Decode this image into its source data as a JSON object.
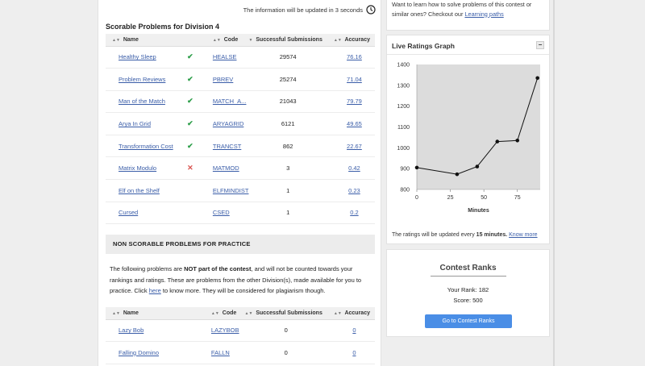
{
  "update_note": "The information will be updated in 3 seconds",
  "scorable": {
    "title": "Scorable Problems for Division 4",
    "headers": {
      "name": "Name",
      "code": "Code",
      "successful": "Successful Submissions",
      "accuracy": "Accuracy"
    },
    "rows": [
      {
        "name": "Healthy Sleep",
        "status": "solved",
        "code": "HEALSE",
        "successful": "29574",
        "accuracy": "76.16"
      },
      {
        "name": "Problem Reviews",
        "status": "solved",
        "code": "PBREV",
        "successful": "25274",
        "accuracy": "71.04"
      },
      {
        "name": "Man of the Match",
        "status": "solved",
        "code": "MATCH_A...",
        "successful": "21043",
        "accuracy": "79.79"
      },
      {
        "name": "Arya In Grid",
        "status": "solved",
        "code": "ARYAGRID",
        "successful": "6121",
        "accuracy": "49.65"
      },
      {
        "name": "Transformation Cost",
        "status": "solved",
        "code": "TRANCST",
        "successful": "862",
        "accuracy": "22.67"
      },
      {
        "name": "Matrix Modulo",
        "status": "failed",
        "code": "MATMOD",
        "successful": "3",
        "accuracy": "0.42"
      },
      {
        "name": "Elf on the Shelf",
        "status": "none",
        "code": "ELFMINDIST",
        "successful": "1",
        "accuracy": "0.23"
      },
      {
        "name": "Cursed",
        "status": "none",
        "code": "CSED",
        "successful": "1",
        "accuracy": "0.2"
      }
    ]
  },
  "nonscorable": {
    "title": "NON SCORABLE PROBLEMS FOR PRACTICE",
    "note_pre": "The following problems are ",
    "note_bold": "NOT part of the contest",
    "note_mid": ", and will not be counted towards your rankings and ratings. These are problems from the other Division(s), made available for you to practice. Click ",
    "note_link": "here",
    "note_post": " to know more. They will be considered for plagiarism though.",
    "headers": {
      "name": "Name",
      "code": "Code",
      "successful": "Successful Submissions",
      "accuracy": "Accuracy"
    },
    "rows": [
      {
        "name": "Lazy Bob",
        "code": "LAZYBOB",
        "successful": "0",
        "accuracy": "0"
      },
      {
        "name": "Falling Domino",
        "code": "FALLN",
        "successful": "0",
        "accuracy": "0"
      }
    ]
  },
  "learn_note": {
    "text": "Want to learn how to solve problems of this contest or similar ones? Checkout our ",
    "link": "Learning paths"
  },
  "graph": {
    "title": "Live Ratings Graph",
    "collapse_label": "−",
    "footer_pre": "The ratings will be updated every ",
    "footer_bold": "15 minutes.",
    "footer_link": "Know more"
  },
  "chart_data": {
    "type": "line",
    "title": "",
    "xlabel": "Minutes",
    "ylabel": "",
    "x": [
      0,
      30,
      45,
      60,
      75,
      90
    ],
    "values": [
      905,
      873,
      910,
      1030,
      1035,
      1335
    ],
    "xlim": [
      0,
      92
    ],
    "ylim": [
      800,
      1400
    ],
    "xticks": [
      0,
      25,
      50,
      75
    ],
    "yticks": [
      800,
      900,
      1000,
      1100,
      1200,
      1300,
      1400
    ],
    "grid": false,
    "colors": {
      "plot_bg": "#dcdcdc",
      "line": "#111111"
    }
  },
  "ranks": {
    "title": "Contest Ranks",
    "rank_label": "Your Rank: ",
    "rank_value": "182",
    "score_label": "Score: ",
    "score_value": "500",
    "button": "Go to Contest Ranks"
  }
}
